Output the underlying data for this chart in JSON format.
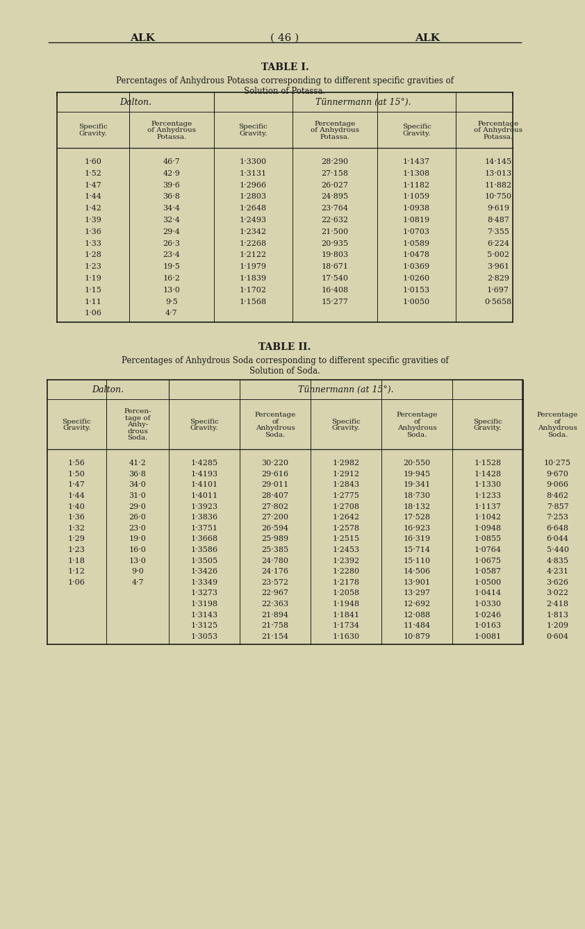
{
  "bg_color": "#d8d4b0",
  "header_line_color": "#1a1a1a",
  "text_color": "#1a1a1a",
  "table1_title": "TABLE I.",
  "table1_subtitle1": "Percentages of Anhydrous Potassa corresponding to different specific gravities of",
  "table1_subtitle2": "Solution of Potassa.",
  "table1_dalton_header": "Dalton.",
  "table1_tunnermann_header": "Tünnermann (at 15°).",
  "table1_col_headers": [
    "Specific\nGravity.",
    "Percentage\nof Anhydrous\nPotassa.",
    "Specific\nGravity.",
    "Percentage\nof Anhydrous\nPotassa.",
    "Specific\nGravity.",
    "Percentage\nof Anhydrous\nPotassa."
  ],
  "table1_data": [
    [
      "1·60",
      "46·7",
      "1·3300",
      "28·290",
      "1·1437",
      "14·145"
    ],
    [
      "1·52",
      "42·9",
      "1·3131",
      "27·158",
      "1·1308",
      "13·013"
    ],
    [
      "1·47",
      "39·6",
      "1·2966",
      "26·027",
      "1·1182",
      "11·882"
    ],
    [
      "1·44",
      "36·8",
      "1·2803",
      "24·895",
      "1·1059",
      "10·750"
    ],
    [
      "1·42",
      "34·4",
      "1·2648",
      "23·764",
      "1·0938",
      "9·619"
    ],
    [
      "1·39",
      "32·4",
      "1·2493",
      "22·632",
      "1·0819",
      "8·487"
    ],
    [
      "1·36",
      "29·4",
      "1·2342",
      "21·500",
      "1·0703",
      "7·355"
    ],
    [
      "1·33",
      "26·3",
      "1·2268",
      "20·935",
      "1·0589",
      "6·224"
    ],
    [
      "1·28",
      "23·4",
      "1·2122",
      "19·803",
      "1·0478",
      "5·002"
    ],
    [
      "1·23",
      "19·5",
      "1·1979",
      "18·671",
      "1·0369",
      "3·961"
    ],
    [
      "1·19",
      "16·2",
      "1·1839",
      "17·540",
      "1·0260",
      "2·829"
    ],
    [
      "1·15",
      "13·0",
      "1·1702",
      "16·408",
      "1·0153",
      "1·697"
    ],
    [
      "1·11",
      "9·5",
      "1·1568",
      "15·277",
      "1·0050",
      "0·5658"
    ],
    [
      "1·06",
      "4·7",
      "",
      "",
      "",
      ""
    ]
  ],
  "table2_title": "TABLE II.",
  "table2_subtitle1": "Percentages of Anhydrous Soda corresponding to different specific gravities of",
  "table2_subtitle2": "Solution of Soda.",
  "table2_dalton_header": "Dalton.",
  "table2_tunnermann_header": "Tünnermann (at 15°).",
  "table2_col_headers": [
    "Specific\nGravity.",
    "Percen-\ntage of\nAnhy-\ndrous\nSoda.",
    "Specific\nGravity.",
    "Percentage\nof\nAnhydrous\nSoda.",
    "Specific\nGravity.",
    "Percentage\nof\nAnhydrous\nSoda.",
    "Specific\nGravity.",
    "Percentage\nof\nAnhydrous\nSoda."
  ],
  "table2_dalton_data": [
    [
      "1·56",
      "41·2"
    ],
    [
      "1·50",
      "36·8"
    ],
    [
      "1·47",
      "34·0"
    ],
    [
      "1·44",
      "31·0"
    ],
    [
      "1·40",
      "29·0"
    ],
    [
      "1·36",
      "26·0"
    ],
    [
      "1·32",
      "23·0"
    ],
    [
      "1·29",
      "19·0"
    ],
    [
      "1·23",
      "16·0"
    ],
    [
      "1·18",
      "13·0"
    ],
    [
      "1·12",
      "9·0"
    ],
    [
      "1·06",
      "4·7"
    ]
  ],
  "table2_tunnermann_data": [
    [
      "1·4285",
      "30·220",
      "1·2982",
      "20·550",
      "1·1528",
      "10·275"
    ],
    [
      "1·4193",
      "29·616",
      "1·2912",
      "19·945",
      "1·1428",
      "9·670"
    ],
    [
      "1·4101",
      "29·011",
      "1·2843",
      "19·341",
      "1·1330",
      "9·066"
    ],
    [
      "1·4011",
      "28·407",
      "1·2775",
      "18·730",
      "1·1233",
      "8·462"
    ],
    [
      "1·3923",
      "27·802",
      "1·2708",
      "18·132",
      "1·1137",
      "7·857"
    ],
    [
      "1·3836",
      "27·200",
      "1·2642",
      "17·528",
      "1·1042",
      "7·253"
    ],
    [
      "1·3751",
      "26·594",
      "1·2578",
      "16·923",
      "1·0948",
      "6·648"
    ],
    [
      "1·3668",
      "25·989",
      "1·2515",
      "16·319",
      "1·0855",
      "6·044"
    ],
    [
      "1·3586",
      "25·385",
      "1·2453",
      "15·714",
      "1·0764",
      "5·440"
    ],
    [
      "1·3505",
      "24·780",
      "1·2392",
      "15·110",
      "1·0675",
      "4·835"
    ],
    [
      "1·3426",
      "24·176",
      "1·2280",
      "14·506",
      "1·0587",
      "4·231"
    ],
    [
      "1·3349",
      "23·572",
      "1·2178",
      "13·901",
      "1·0500",
      "3·626"
    ],
    [
      "1·3273",
      "22·967",
      "1·2058",
      "13·297",
      "1·0414",
      "3·022"
    ],
    [
      "1·3198",
      "22·363",
      "1·1948",
      "12·692",
      "1·0330",
      "2·418"
    ],
    [
      "1·3143",
      "21·894",
      "1·1841",
      "12·088",
      "1·0246",
      "1·813"
    ],
    [
      "1·3125",
      "21·758",
      "1·1734",
      "11·484",
      "1·0163",
      "1·209"
    ],
    [
      "1·3053",
      "21·154",
      "1·1630",
      "10·879",
      "1·0081",
      "0·604"
    ]
  ]
}
